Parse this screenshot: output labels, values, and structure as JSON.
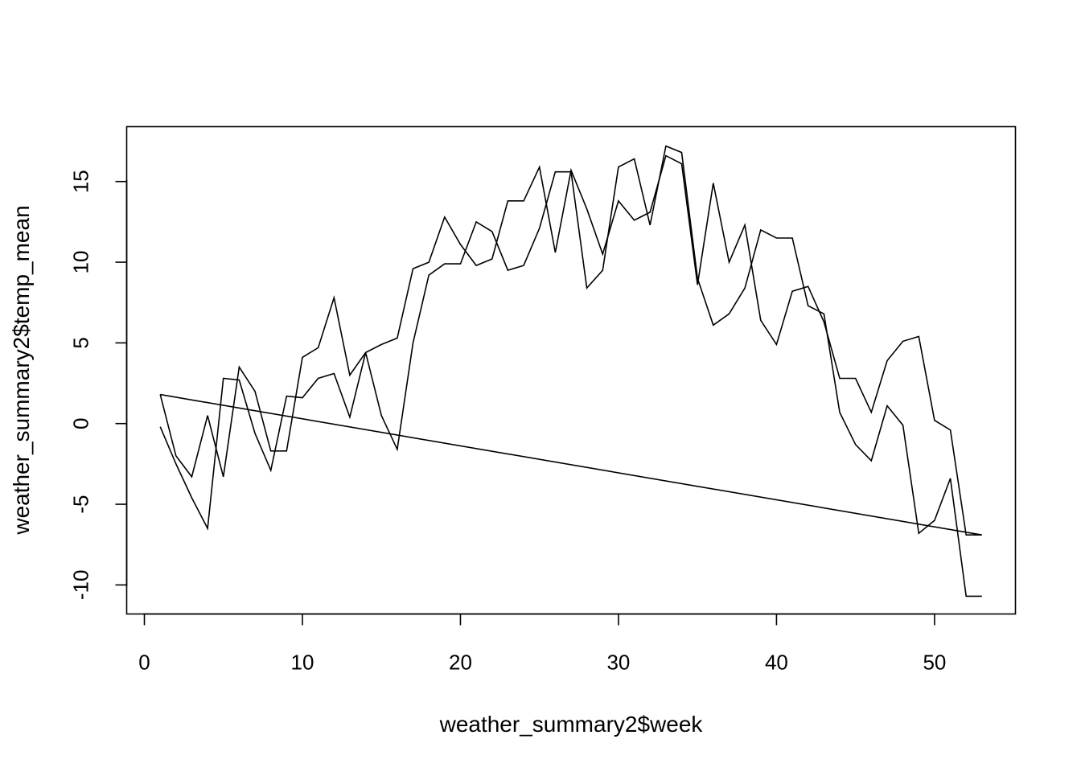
{
  "chart_data": {
    "type": "line",
    "title": "",
    "xlabel": "weather_summary2$week",
    "ylabel": "weather_summary2$temp_mean",
    "xlim": [
      -1.12,
      55.12
    ],
    "ylim": [
      -11.8,
      18.4
    ],
    "x_ticks": [
      0,
      10,
      20,
      30,
      40,
      50
    ],
    "y_ticks": [
      -10,
      -5,
      0,
      5,
      10,
      15
    ],
    "x_tick_labels": [
      "0",
      "10",
      "20",
      "30",
      "40",
      "50"
    ],
    "y_tick_labels": [
      "-10",
      "-5",
      "0",
      "5",
      "10",
      "15"
    ],
    "grid": false,
    "legend": "none",
    "color": "#000000",
    "series": [
      {
        "x": [
          1,
          2,
          3,
          4,
          5,
          6,
          7,
          8,
          9,
          10,
          11,
          12,
          13,
          14,
          15,
          16,
          17,
          18,
          19,
          20,
          21,
          22,
          23,
          24,
          25,
          26,
          27,
          28,
          29,
          30,
          31,
          32,
          33,
          34,
          35,
          36,
          37,
          38,
          39,
          40,
          41,
          42,
          43,
          44,
          45,
          46,
          47,
          48,
          49,
          50,
          51,
          52,
          53
        ],
        "y": [
          -0.2,
          -2.5,
          -4.6,
          -6.5,
          2.8,
          2.7,
          -0.6,
          -2.9,
          1.7,
          1.6,
          2.8,
          3.1,
          0.4,
          4.4,
          0.5,
          -1.6,
          5.0,
          9.2,
          9.9,
          9.9,
          12.5,
          11.9,
          9.5,
          9.8,
          12.1,
          15.6,
          15.6,
          8.4,
          9.5,
          15.9,
          16.4,
          12.3,
          17.2,
          16.8,
          9.0,
          6.1,
          6.8,
          8.4,
          12.0,
          11.5,
          11.5,
          7.3,
          6.8,
          0.7,
          -1.3,
          -2.3,
          1.1,
          -0.1,
          -6.8,
          -6.0,
          -3.4,
          -10.7,
          -10.7
        ]
      },
      {
        "x": [
          1,
          2,
          3,
          4,
          5,
          6,
          7,
          8,
          9,
          10,
          11,
          12,
          13,
          14,
          15,
          16,
          17,
          18,
          19,
          20,
          21,
          22,
          23,
          24,
          25,
          26,
          27,
          28,
          29,
          30,
          31,
          32,
          33,
          34,
          35,
          36,
          37,
          38,
          39,
          40,
          41,
          42,
          43,
          44,
          45,
          46,
          47,
          48,
          49,
          50,
          51,
          52,
          53,
          1
        ],
        "y": [
          1.8,
          -2.0,
          -3.3,
          0.5,
          -3.3,
          3.5,
          2.0,
          -1.7,
          -1.7,
          4.1,
          4.7,
          7.8,
          3.0,
          4.4,
          4.9,
          5.3,
          9.6,
          10.0,
          12.8,
          11.1,
          9.8,
          10.2,
          13.8,
          13.8,
          15.9,
          10.6,
          15.7,
          13.3,
          10.5,
          13.8,
          12.6,
          13.1,
          16.6,
          16.1,
          8.6,
          14.9,
          10.0,
          12.3,
          6.4,
          4.9,
          8.2,
          8.5,
          6.3,
          2.8,
          2.8,
          0.7,
          3.9,
          5.1,
          5.4,
          0.2,
          -0.4,
          -6.9,
          -6.9,
          1.8
        ]
      }
    ]
  }
}
